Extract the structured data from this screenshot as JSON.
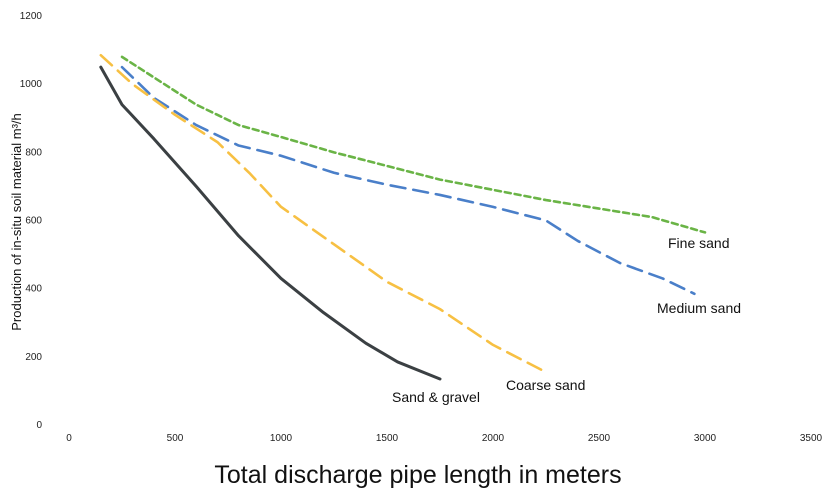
{
  "chart_data": {
    "type": "line",
    "title": "",
    "xlabel": "Total discharge pipe length in meters",
    "ylabel": "Production of in-situ soil material m³/h",
    "xlim": [
      0,
      3500
    ],
    "ylim": [
      0,
      1200
    ],
    "xticks": [
      0,
      500,
      1000,
      1500,
      2000,
      2500,
      3000,
      3500
    ],
    "yticks": [
      0,
      200,
      400,
      600,
      800,
      1000,
      1200
    ],
    "grid": false,
    "legend": "none",
    "series": [
      {
        "name": "Fine sand",
        "color": "#6ab446",
        "dash": "short",
        "x": [
          250,
          400,
          600,
          800,
          1000,
          1250,
          1500,
          1750,
          2000,
          2250,
          2500,
          2750,
          3000
        ],
        "y": [
          1080,
          1020,
          940,
          880,
          845,
          800,
          760,
          720,
          690,
          660,
          635,
          610,
          565
        ]
      },
      {
        "name": "Medium sand",
        "color": "#4a7fc9",
        "dash": "long",
        "x": [
          250,
          400,
          600,
          800,
          1000,
          1250,
          1500,
          1750,
          2000,
          2250,
          2400,
          2600,
          2800,
          2950
        ],
        "y": [
          1050,
          960,
          880,
          820,
          790,
          740,
          705,
          675,
          640,
          600,
          540,
          475,
          430,
          385
        ]
      },
      {
        "name": "Coarse sand",
        "color": "#f7c043",
        "dash": "long",
        "x": [
          150,
          300,
          500,
          700,
          850,
          1000,
          1250,
          1500,
          1750,
          2000,
          2250
        ],
        "y": [
          1085,
          1000,
          910,
          830,
          740,
          640,
          530,
          420,
          340,
          235,
          155
        ]
      },
      {
        "name": "Sand & gravel",
        "color": "#3b4043",
        "dash": "solid",
        "x": [
          150,
          250,
          400,
          600,
          800,
          1000,
          1200,
          1400,
          1550,
          1750
        ],
        "y": [
          1050,
          940,
          840,
          700,
          555,
          430,
          330,
          240,
          185,
          135
        ]
      }
    ],
    "labels": {
      "fine_sand": "Fine sand",
      "medium_sand": "Medium sand",
      "coarse_sand": "Coarse sand",
      "sand_gravel": "Sand & gravel"
    }
  }
}
